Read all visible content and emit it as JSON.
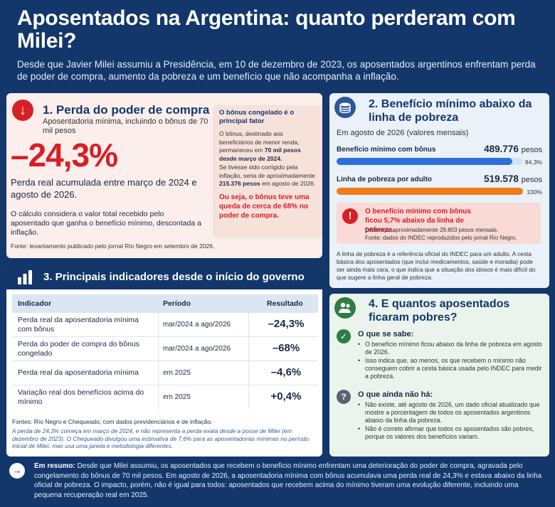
{
  "header": {
    "title": "Aposentados na Argentina: quanto perderam com Milei?",
    "subtitle": "Desde que Javier Milei assumiu a Presidência, em 10 de dezembro de 2023, os aposentados argentinos enfrentam perda de poder de compra, aumento da pobreza e um benefício que não acompanha a inflação."
  },
  "card1": {
    "title": "1. Perda do poder de compra",
    "subtitle": "Aposentadoria mínima, incluindo o bônus de 70 mil pesos",
    "big_value": "–24,3%",
    "real_loss": "Perda real acumulada entre março de 2024 e agosto de 2026.",
    "calc": "O cálculo considera o valor total recebido pelo aposentado que ganha o benefício mínimo, descontada a inflação.",
    "source": "Fonte: levantamento publicado pelo jornal Río Negro em setembro de 2026.",
    "side": {
      "heading": "O bônus congelado é o principal fator",
      "text1a": "O bônus, destinado aos beneficiários de menor renda, permaneceu em ",
      "text1b": "70 mil pesos desde março de 2024.",
      "text2a": "Se tivesse sido corrigido pela inflação, seria de aproximadamente ",
      "text2b": "215.376 pesos",
      "text2c": " em agosto de 2026.",
      "result": "Ou seja, o bônus teve uma queda de cerca de 68% no poder de compra."
    }
  },
  "card2": {
    "title": "2. Benefício mínimo abaixo da linha de pobreza",
    "period": "Em agosto de 2026 (valores mensais)",
    "benefit_label": "Benefício mínimo com bônus",
    "benefit_value": "489.776",
    "currency": "pesos",
    "benefit_pct": "94,3%",
    "benefit_fill": 94.3,
    "poverty_label": "Linha de pobreza por adulto",
    "poverty_value": "519.578",
    "poverty_pct": "100%",
    "poverty_fill": 100,
    "alert_title": "O benefício mínimo com bônus ficou 5,7% abaixo da linha de pobreza.",
    "alert_diff": "Diferença: aproximadamente 29.803 pesos mensais.",
    "alert_source": "Fonte: dados do INDEC reproduzidos pelo jornal Río Negro.",
    "note": "A linha de pobreza é a referência oficial do INDEC para um adulto. A cesta básica dos aposentados (que inclui medicamentos, saúde e moradia) pode ser ainda mais cara, o que indica que a situação dos idosos é mais difícil do que sugere a linha geral de pobreza.",
    "colors": {
      "benefit": "#2e6fdc",
      "poverty": "#f07b1a"
    }
  },
  "card3": {
    "title": "3. Principais indicadores desde o início do governo",
    "headers": [
      "Indicador",
      "Período",
      "Resultado"
    ],
    "rows": [
      {
        "indicator": "Perda real da aposentadoria mínima com bônus",
        "period": "mar/2024 a ago/2026",
        "result": "–24,3%"
      },
      {
        "indicator": "Perda do poder de compra do bônus congelado",
        "period": "mar/2024 a ago/2026",
        "result": "–68%"
      },
      {
        "indicator": "Perda real da aposentadoria mínima",
        "period": "em 2025",
        "result": "–4,6%"
      },
      {
        "indicator": "Variação real dos benefícios acima do mínimo",
        "period": "em 2025",
        "result": "+0,4%"
      }
    ],
    "source": "Fontes: Río Negro e Chequeado, com dados previdenciários e de inflação.",
    "note": "A perda de 24,3% começa em março de 2024, e não representa a perda exata desde a posse de Milei (em dezembro de 2023). O Chequeado divulgou uma estimativa de 7,6% para as aposentadorias mínimas no período inicial de Milei, mas usa uma janela e metodologia diferentes."
  },
  "card4": {
    "title": "4. E quantos aposentados ficaram pobres?",
    "known_label": "O que se sabe:",
    "known": [
      "O benefício mínimo ficou abaixo da linha de pobreza em agosto de 2026.",
      "Isso indica que, ao menos, os que recebem o mínimo não conseguem cobrir a cesta básica usada pelo INDEC para medir a pobreza."
    ],
    "unknown_label": "O que ainda não há:",
    "unknown": [
      "Não existe, até agosto de 2026, um dado oficial atualizado que mostre a porcentagem de todos os aposentados argentinos abaixo da linha da pobreza.",
      "Não é correto afirmar que todos os aposentados são pobres, porque os valores dos benefícios variam."
    ]
  },
  "summary": {
    "label": "Em resumo:",
    "text": " Desde que Milei assumiu, os aposentados que recebem o benefício mínimo enfrentam uma deterioração do poder de compra, agravada pelo congelamento do bônus de 70 mil pesos. Em agosto de 2026, a aposentadoria mínima com bônus acumulava uma perda real de 24,3% e estava abaixo da linha oficial de pobreza. O impacto, porém, não é igual para todos: aposentados que recebem acima do mínimo tiveram uma evolução diferente, incluindo uma pequena recuperação real em 2025."
  }
}
